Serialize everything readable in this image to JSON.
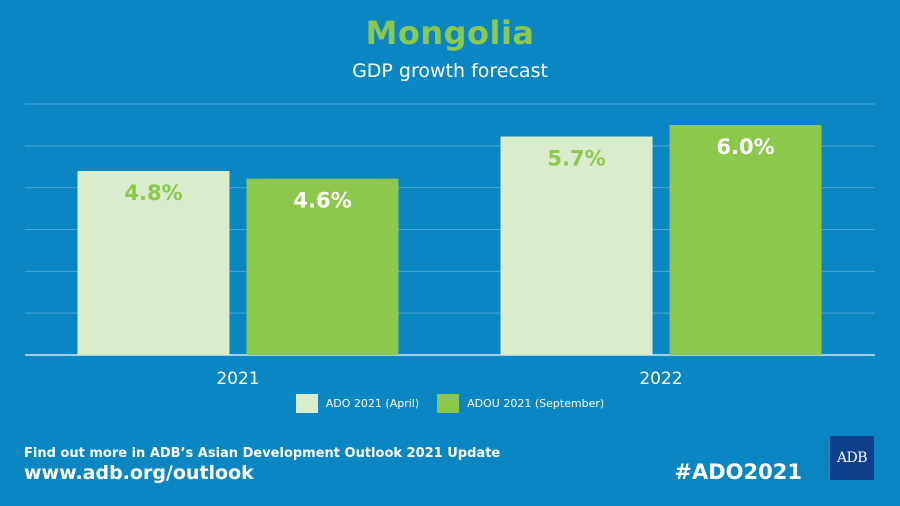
{
  "header": {
    "title": "Mongolia",
    "subtitle": "GDP growth forecast"
  },
  "colors": {
    "background": "#0a86c3",
    "ado_april": "#d9eccc",
    "adou_september": "#8cc84b",
    "grid": "#4aa6d6",
    "label_dark_bg": "#ffffff",
    "label_light_bg": "#8cc84b"
  },
  "chart_data": {
    "type": "bar",
    "categories": [
      "2021",
      "2022"
    ],
    "series": [
      {
        "name": "ADO 2021 (April)",
        "values": [
          4.8,
          5.7
        ],
        "labels": [
          "4.8%",
          "5.7%"
        ]
      },
      {
        "name": "ADOU 2021 (September)",
        "values": [
          4.6,
          6.0
        ],
        "labels": [
          "4.6%",
          "6.0%"
        ]
      }
    ],
    "ylim": [
      0,
      6.0
    ],
    "grid": true,
    "legend_position": "bottom"
  },
  "footer": {
    "line1": "Find out more in ADB’s Asian Development Outlook 2021 Update",
    "url": "www.adb.org/outlook",
    "hashtag": "#ADO2021",
    "logo_text": "ADB"
  }
}
